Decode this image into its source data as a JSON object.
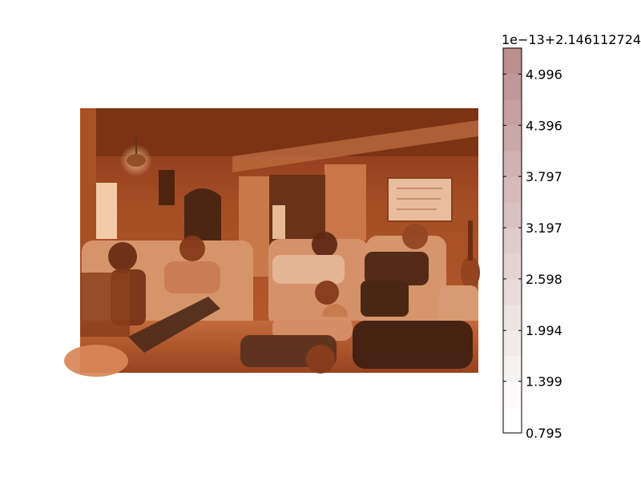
{
  "chart_data": {
    "type": "heatmap",
    "image": {
      "description_name": "room-photo",
      "dominant_colors": [
        "#7a2e14",
        "#a84c24",
        "#c8693a",
        "#e08a55",
        "#f2b27c"
      ]
    },
    "colorbar": {
      "offset_text": "1e−13+2.146112724",
      "tick_labels": [
        "4.996",
        "4.396",
        "3.797",
        "3.197",
        "2.598",
        "1.994",
        "1.399",
        "0.795"
      ],
      "range": [
        0.795,
        5.3
      ],
      "levels": 15,
      "color_low": "#ffffff",
      "color_high": "#bc8f8f"
    }
  }
}
